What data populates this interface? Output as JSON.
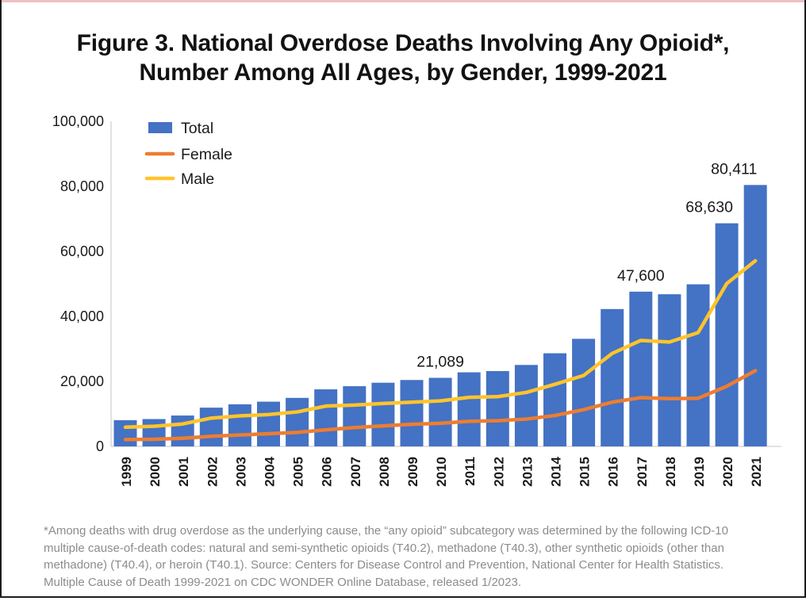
{
  "title": {
    "lines": [
      "Figure 3. National Overdose Deaths Involving Any Opioid*,",
      "Number Among All Ages, by Gender, 1999-2021"
    ]
  },
  "chart_data": {
    "type": "bar",
    "subtype": "bar-with-line-overlay",
    "categories": [
      "1999",
      "2000",
      "2001",
      "2002",
      "2003",
      "2004",
      "2005",
      "2006",
      "2007",
      "2008",
      "2009",
      "2010",
      "2011",
      "2012",
      "2013",
      "2014",
      "2015",
      "2016",
      "2017",
      "2018",
      "2019",
      "2020",
      "2021"
    ],
    "series": [
      {
        "name": "Total",
        "render": "bar",
        "color": "#4472C4",
        "values": [
          8048,
          8407,
          9496,
          11920,
          12940,
          13756,
          14918,
          17545,
          18516,
          19582,
          20422,
          21089,
          22784,
          23166,
          25052,
          28647,
          33091,
          42249,
          47600,
          46802,
          49860,
          68630,
          80411
        ]
      },
      {
        "name": "Female",
        "render": "line",
        "color": "#ED7D31",
        "values": [
          2100,
          2200,
          2500,
          3100,
          3500,
          3900,
          4300,
          5100,
          5800,
          6300,
          6800,
          7100,
          7700,
          7900,
          8400,
          9500,
          11300,
          13600,
          15000,
          14700,
          14800,
          18500,
          23300
        ]
      },
      {
        "name": "Male",
        "render": "line",
        "color": "#FFC42C",
        "values": [
          5900,
          6200,
          6900,
          8700,
          9400,
          9800,
          10600,
          12400,
          12700,
          13200,
          13600,
          14000,
          15100,
          15300,
          16600,
          19100,
          21800,
          28600,
          32600,
          32100,
          35000,
          50100,
          57100
        ]
      }
    ],
    "data_labels": [
      {
        "index": 11,
        "text": "21,089",
        "dx": 0
      },
      {
        "index": 18,
        "text": "47,600",
        "dx": 0
      },
      {
        "index": 21,
        "text": "68,630",
        "dx": -22
      },
      {
        "index": 22,
        "text": "80,411",
        "dx": -27
      }
    ],
    "y_axis": {
      "ticks": [
        "0",
        "20,000",
        "40,000",
        "60,000",
        "80,000",
        "100,000"
      ],
      "tick_values": [
        0,
        20000,
        40000,
        60000,
        80000,
        100000
      ],
      "min": 0,
      "max": 100000,
      "gridlines": false
    },
    "legend": {
      "position": "top-left-inside",
      "items": [
        {
          "label": "Total",
          "swatch": "rect",
          "color": "#4472C4"
        },
        {
          "label": "Female",
          "swatch": "line",
          "color": "#ED7D31"
        },
        {
          "label": "Male",
          "swatch": "line",
          "color": "#FFC42C"
        }
      ]
    },
    "axis_color": "#D9D9D9",
    "label_color": "#1A1A1A"
  },
  "footnote": {
    "color": "#8C8C8C",
    "lines": [
      "*Among deaths with drug overdose as the underlying cause, the “any opioid” subcategory was determined by the following ICD-10",
      "multiple cause-of-death codes: natural and semi-synthetic opioids (T40.2), methadone (T40.3), other synthetic opioids (other than",
      "methadone) (T40.4), or heroin (T40.1). Source: Centers for Disease Control and Prevention, National Center for Health Statistics.",
      "Multiple Cause of Death 1999-2021 on CDC WONDER Online Database, released 1/2023."
    ]
  },
  "frame": {
    "accent_top_color": "#EEC0C0",
    "border_color": "#1C1C1C"
  }
}
